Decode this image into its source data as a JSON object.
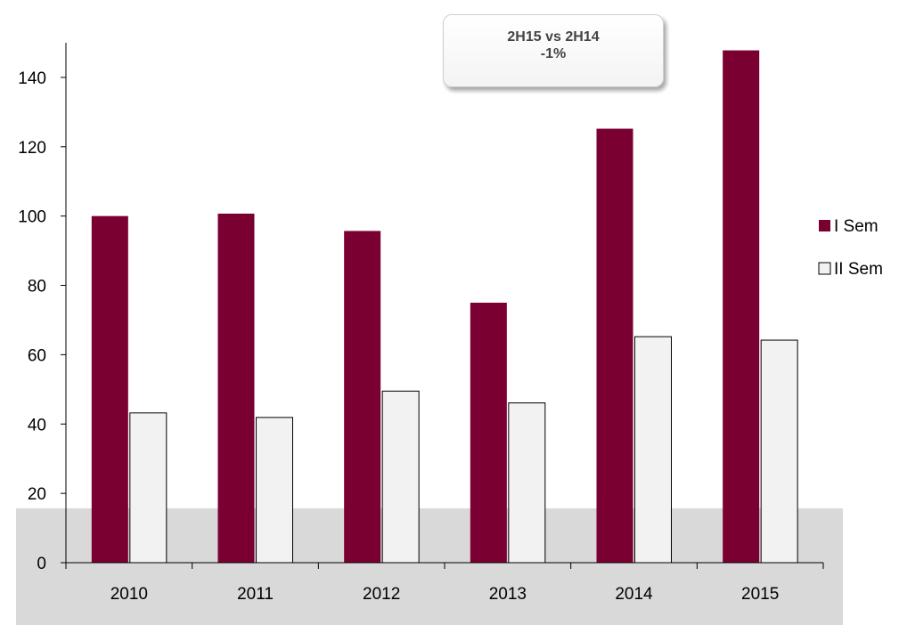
{
  "colors": {
    "series1": "#7b0032",
    "series2": "#f2f2f2",
    "series2_border": "#000000",
    "band": "#d9d9d9",
    "axis": "#000000"
  },
  "callout": {
    "line1": "2H15 vs 2H14",
    "line2": "-1%"
  },
  "chart_data": {
    "type": "bar",
    "title": "",
    "xlabel": "",
    "ylabel": "",
    "categories": [
      "2010",
      "2011",
      "2012",
      "2013",
      "2014",
      "2015"
    ],
    "series": [
      {
        "name": "I Sem",
        "values": [
          100,
          100.7,
          95.7,
          75,
          125.2,
          147.8
        ]
      },
      {
        "name": "II Sem",
        "values": [
          43.2,
          41.9,
          49.5,
          46.1,
          65.2,
          64.2
        ]
      }
    ],
    "ylim": [
      0,
      150
    ],
    "yticks": [
      0,
      20,
      40,
      60,
      80,
      100,
      120,
      140
    ],
    "grid": false,
    "legend_position": "right"
  }
}
